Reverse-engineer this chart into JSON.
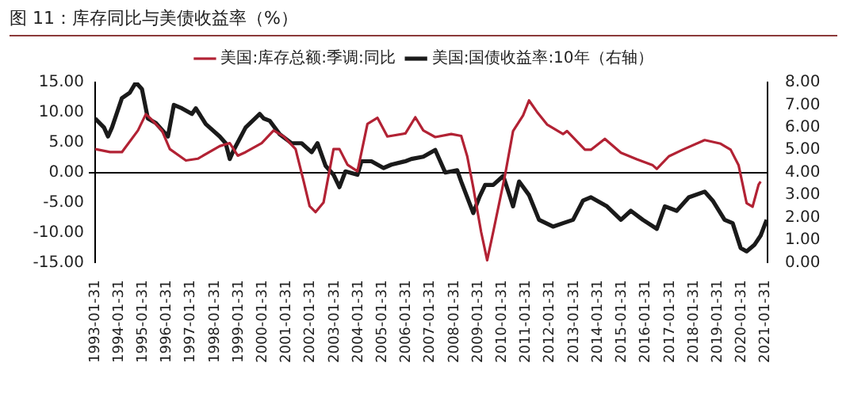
{
  "chart_data": {
    "type": "line",
    "title": "图 11：库存同比与美债收益率（%）",
    "legend": "top",
    "marker": "none",
    "xlim": [
      "1993-01-31",
      "2021-02-28"
    ],
    "xticks": [
      "1993-01-31",
      "1994-01-31",
      "1995-01-31",
      "1996-01-31",
      "1997-01-31",
      "1998-01-31",
      "1999-01-31",
      "2000-01-31",
      "2001-01-31",
      "2002-01-31",
      "2003-01-31",
      "2004-01-31",
      "2005-01-31",
      "2006-01-31",
      "2007-01-31",
      "2008-01-31",
      "2009-01-31",
      "2010-01-31",
      "2011-01-31",
      "2012-01-31",
      "2013-01-31",
      "2014-01-31",
      "2015-01-31",
      "2016-01-31",
      "2017-01-31",
      "2018-01-31",
      "2019-01-31",
      "2020-01-31",
      "2021-01-31"
    ],
    "ylim": [
      -15,
      15
    ],
    "yticks": [
      {
        "value": -15,
        "label": "-15.00"
      },
      {
        "value": -10,
        "label": "-10.00"
      },
      {
        "value": -5,
        "label": "-5.00"
      },
      {
        "value": 0,
        "label": "0.00"
      },
      {
        "value": 5,
        "label": "5.00"
      },
      {
        "value": 10,
        "label": "10.00"
      },
      {
        "value": 15,
        "label": "15.00"
      }
    ],
    "y2lim": [
      0,
      8
    ],
    "y2ticks": [
      {
        "value": 0,
        "label": "0.00"
      },
      {
        "value": 1,
        "label": "1.00"
      },
      {
        "value": 2,
        "label": "2.00"
      },
      {
        "value": 3,
        "label": "3.00"
      },
      {
        "value": 4,
        "label": "4.00"
      },
      {
        "value": 5,
        "label": "5.00"
      },
      {
        "value": 6,
        "label": "6.00"
      },
      {
        "value": 7,
        "label": "7.00"
      },
      {
        "value": 8,
        "label": "8.00"
      }
    ],
    "series": [
      {
        "name": "美国:库存总额:季调:同比",
        "color": "#b22234",
        "x": [
          "1993-01-31",
          "1993-09",
          "1994-03",
          "1994-11",
          "1995-03",
          "1995-05",
          "1995-11",
          "1996-03",
          "1996-11",
          "1997-05",
          "1998-04",
          "1998-09",
          "1999-01",
          "1999-05",
          "2000-01",
          "2000-07",
          "2000-12",
          "2001-06",
          "2001-10",
          "2002-01",
          "2002-04",
          "2002-08",
          "2003-01",
          "2003-04",
          "2003-08",
          "2004-01",
          "2004-06",
          "2004-11",
          "2005-04",
          "2006-01",
          "2006-06",
          "2006-10",
          "2007-04",
          "2007-12",
          "2008-05",
          "2008-08",
          "2008-11",
          "2009-03",
          "2009-06",
          "2009-09",
          "2010-03",
          "2010-07",
          "2010-12",
          "2011-03",
          "2011-07",
          "2011-12",
          "2012-08",
          "2012-10",
          "2013-07",
          "2013-10",
          "2014-05",
          "2015-01",
          "2015-09",
          "2016-05",
          "2016-07",
          "2017-01",
          "2017-08",
          "2018-07",
          "2019-03",
          "2019-08",
          "2019-12",
          "2020-04",
          "2020-07",
          "2020-10",
          "2020-11"
        ],
        "values": [
          3.9,
          3.4,
          3.4,
          7.0,
          9.7,
          9.1,
          7.0,
          3.9,
          2.0,
          2.3,
          4.4,
          4.9,
          2.8,
          3.4,
          4.9,
          7.0,
          6.0,
          3.9,
          -1.4,
          -5.6,
          -6.6,
          -5.0,
          3.9,
          3.9,
          1.3,
          0.2,
          8.1,
          9.1,
          6.0,
          6.5,
          9.2,
          7.0,
          5.9,
          6.4,
          6.1,
          2.7,
          -2.5,
          -9.9,
          -14.6,
          -9.9,
          -0.4,
          6.9,
          9.5,
          12.0,
          10.1,
          8.0,
          6.4,
          6.9,
          3.8,
          3.8,
          5.6,
          3.3,
          2.2,
          1.2,
          0.6,
          2.7,
          3.8,
          5.4,
          4.8,
          3.8,
          1.2,
          -5.1,
          -5.7,
          -2.0,
          -1.5
        ]
      },
      {
        "name": "美国:国债收益率:10年（右轴）",
        "color": "#1a1a1a",
        "axis": "y2",
        "x": [
          "1993-01-31",
          "1993-06",
          "1993-08",
          "1993-10",
          "1994-03",
          "1994-07",
          "1994-10",
          "1995-01",
          "1995-04",
          "1995-08",
          "1996-02",
          "1996-05",
          "1996-09",
          "1997-02",
          "1997-04",
          "1997-09",
          "1998-04",
          "1998-07",
          "1998-09",
          "1998-11",
          "1999-05",
          "1999-12",
          "2000-02",
          "2000-05",
          "2000-10",
          "2001-04",
          "2001-09",
          "2002-02",
          "2002-05",
          "2002-09",
          "2003-01",
          "2003-04",
          "2003-07",
          "2004-01",
          "2004-03",
          "2004-08",
          "2005-02",
          "2005-06",
          "2006-01",
          "2006-04",
          "2006-10",
          "2007-04",
          "2007-09",
          "2008-03",
          "2008-05",
          "2008-11",
          "2009-02",
          "2009-05",
          "2009-09",
          "2010-02",
          "2010-07",
          "2010-10",
          "2011-03",
          "2011-08",
          "2012-03",
          "2012-08",
          "2013-01",
          "2013-06",
          "2013-10",
          "2014-06",
          "2015-01",
          "2015-06",
          "2015-12",
          "2016-07",
          "2016-11",
          "2017-05",
          "2017-11",
          "2018-07",
          "2018-11",
          "2019-05",
          "2019-09",
          "2020-01",
          "2020-04",
          "2020-08",
          "2020-11",
          "2021-02"
        ],
        "values": [
          6.4,
          6.0,
          5.6,
          6.0,
          7.3,
          7.55,
          8.0,
          7.7,
          6.4,
          6.2,
          5.6,
          7.0,
          6.85,
          6.6,
          6.85,
          6.15,
          5.6,
          5.3,
          4.6,
          5.0,
          6.0,
          6.6,
          6.4,
          6.3,
          5.7,
          5.3,
          5.3,
          4.9,
          5.3,
          4.3,
          3.9,
          3.35,
          4.05,
          3.9,
          4.5,
          4.5,
          4.2,
          4.35,
          4.5,
          4.6,
          4.7,
          5.0,
          4.0,
          4.1,
          3.6,
          2.2,
          2.9,
          3.45,
          3.45,
          3.85,
          2.5,
          3.6,
          3.0,
          1.9,
          1.6,
          1.75,
          1.9,
          2.75,
          2.9,
          2.5,
          1.9,
          2.3,
          1.9,
          1.5,
          2.5,
          2.3,
          2.9,
          3.15,
          2.75,
          1.9,
          1.75,
          0.65,
          0.5,
          0.8,
          1.2,
          1.9
        ]
      }
    ]
  }
}
